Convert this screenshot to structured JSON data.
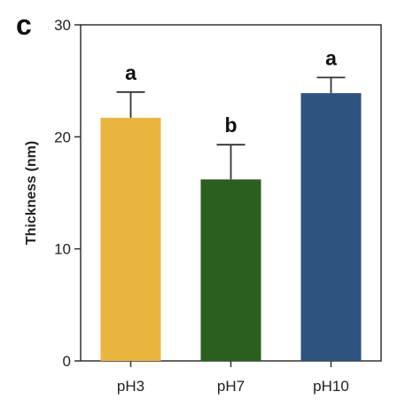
{
  "panel_label": "c",
  "chart_data": {
    "type": "bar",
    "categories": [
      "pH3",
      "pH7",
      "pH10"
    ],
    "values": [
      21.7,
      16.2,
      23.9
    ],
    "errors": [
      2.3,
      3.1,
      1.4
    ],
    "significance": [
      "a",
      "b",
      "a"
    ],
    "colors": [
      "#EAB53E",
      "#2C5E1E",
      "#2E537E"
    ],
    "ylabel": "Thickness (nm)",
    "xlabel": "",
    "title": "",
    "ylim": [
      0,
      30
    ],
    "yticks": [
      0,
      10,
      20,
      30
    ],
    "grid": false
  }
}
